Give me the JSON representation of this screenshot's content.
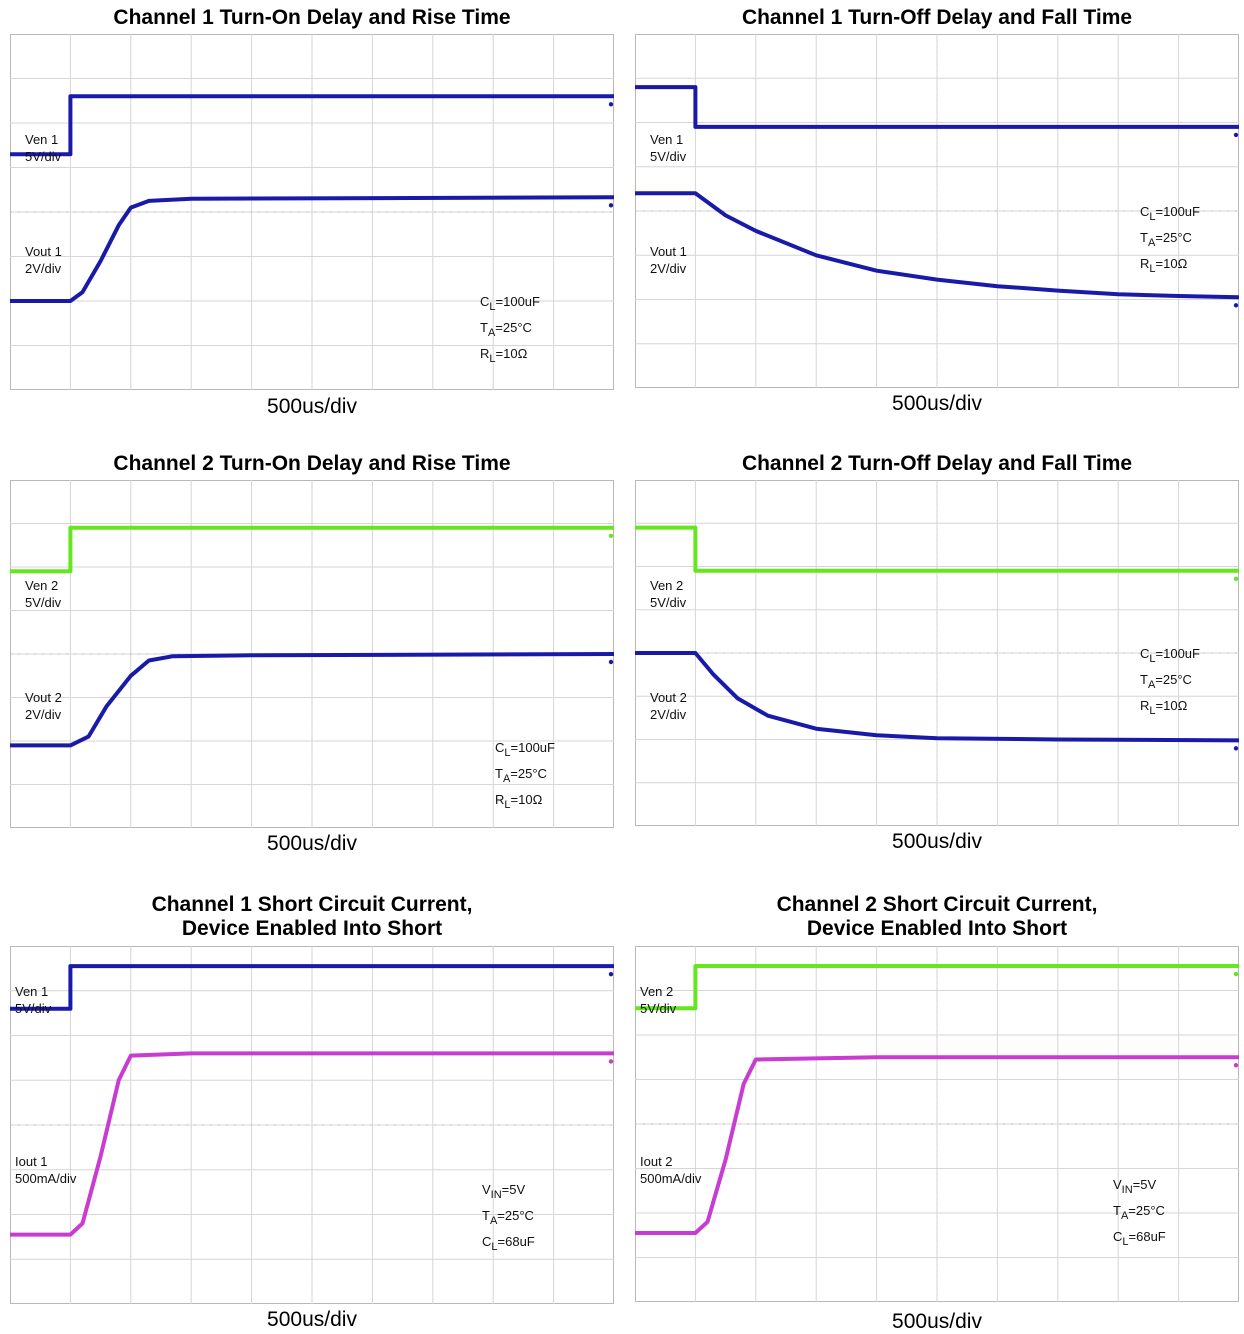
{
  "chart_data": [
    {
      "type": "line",
      "title": "Channel 1 Turn-On Delay and Rise Time",
      "xlabel": "500us/div",
      "grid": true,
      "x_divisions": 10,
      "y_divisions": 8,
      "series": [
        {
          "name": "Ven 1",
          "label": "Ven 1",
          "scale": "5V/div",
          "color": "#1a1aa8",
          "points": [
            [
              0,
              5.3
            ],
            [
              1,
              5.3
            ],
            [
              1,
              6.6
            ],
            [
              10,
              6.6
            ]
          ]
        },
        {
          "name": "Vout 1",
          "label": "Vout 1",
          "scale": "2V/div",
          "color": "#1a1aa8",
          "points": [
            [
              0,
              2.0
            ],
            [
              1.0,
              2.0
            ],
            [
              1.2,
              2.2
            ],
            [
              1.5,
              2.9
            ],
            [
              1.8,
              3.7
            ],
            [
              2.0,
              4.1
            ],
            [
              2.3,
              4.25
            ],
            [
              3.0,
              4.3
            ],
            [
              10,
              4.33
            ]
          ]
        }
      ],
      "annotations": [
        {
          "text": "C",
          "sub": "L",
          "rest": "=100uF"
        },
        {
          "text": "T",
          "sub": "A",
          "rest": "=25°C"
        },
        {
          "text": "R",
          "sub": "L",
          "rest": "=10Ω"
        }
      ]
    },
    {
      "type": "line",
      "title": "Channel 1 Turn-Off Delay and Fall Time",
      "xlabel": "500us/div",
      "grid": true,
      "x_divisions": 10,
      "y_divisions": 8,
      "series": [
        {
          "name": "Ven 1",
          "label": "Ven 1",
          "scale": "5V/div",
          "color": "#1a1aa8",
          "points": [
            [
              0,
              6.8
            ],
            [
              1,
              6.8
            ],
            [
              1,
              5.9
            ],
            [
              10,
              5.9
            ]
          ]
        },
        {
          "name": "Vout 1",
          "label": "Vout 1",
          "scale": "2V/div",
          "color": "#1a1aa8",
          "points": [
            [
              0,
              4.4
            ],
            [
              1.0,
              4.4
            ],
            [
              1.5,
              3.9
            ],
            [
              2.0,
              3.55
            ],
            [
              3.0,
              3.0
            ],
            [
              4.0,
              2.65
            ],
            [
              5.0,
              2.45
            ],
            [
              6.0,
              2.3
            ],
            [
              7.0,
              2.2
            ],
            [
              8.0,
              2.12
            ],
            [
              9.0,
              2.08
            ],
            [
              10,
              2.05
            ]
          ]
        }
      ],
      "annotations": [
        {
          "text": "C",
          "sub": "L",
          "rest": "=100uF"
        },
        {
          "text": "T",
          "sub": "A",
          "rest": "=25°C"
        },
        {
          "text": "R",
          "sub": "L",
          "rest": "=10Ω"
        }
      ]
    },
    {
      "type": "line",
      "title": "Channel 2 Turn-On Delay and Rise Time",
      "xlabel": "500us/div",
      "grid": true,
      "x_divisions": 10,
      "y_divisions": 8,
      "series": [
        {
          "name": "Ven 2",
          "label": "Ven 2",
          "scale": "5V/div",
          "color": "#66e61e",
          "points": [
            [
              0,
              5.9
            ],
            [
              1,
              5.9
            ],
            [
              1,
              6.9
            ],
            [
              10,
              6.9
            ]
          ]
        },
        {
          "name": "Vout 2",
          "label": "Vout 2",
          "scale": "2V/div",
          "color": "#1a1aa8",
          "points": [
            [
              0,
              1.9
            ],
            [
              1.0,
              1.9
            ],
            [
              1.3,
              2.1
            ],
            [
              1.6,
              2.8
            ],
            [
              2.0,
              3.5
            ],
            [
              2.3,
              3.85
            ],
            [
              2.7,
              3.95
            ],
            [
              4.0,
              3.97
            ],
            [
              10,
              4.0
            ]
          ]
        }
      ],
      "annotations": [
        {
          "text": "C",
          "sub": "L",
          "rest": "=100uF"
        },
        {
          "text": "T",
          "sub": "A",
          "rest": "=25°C"
        },
        {
          "text": "R",
          "sub": "L",
          "rest": "=10Ω"
        }
      ]
    },
    {
      "type": "line",
      "title": "Channel 2 Turn-Off Delay and Fall Time",
      "xlabel": "500us/div",
      "grid": true,
      "x_divisions": 10,
      "y_divisions": 8,
      "series": [
        {
          "name": "Ven 2",
          "label": "Ven 2",
          "scale": "5V/div",
          "color": "#66e61e",
          "points": [
            [
              0,
              6.9
            ],
            [
              1,
              6.9
            ],
            [
              1,
              5.9
            ],
            [
              10,
              5.9
            ]
          ]
        },
        {
          "name": "Vout 2",
          "label": "Vout 2",
          "scale": "2V/div",
          "color": "#1a1aa8",
          "points": [
            [
              0,
              4.0
            ],
            [
              1.0,
              4.0
            ],
            [
              1.3,
              3.5
            ],
            [
              1.7,
              2.95
            ],
            [
              2.2,
              2.55
            ],
            [
              3.0,
              2.25
            ],
            [
              4.0,
              2.1
            ],
            [
              5.0,
              2.03
            ],
            [
              7.0,
              2.0
            ],
            [
              10,
              1.98
            ]
          ]
        }
      ],
      "annotations": [
        {
          "text": "C",
          "sub": "L",
          "rest": "=100uF"
        },
        {
          "text": "T",
          "sub": "A",
          "rest": "=25°C"
        },
        {
          "text": "R",
          "sub": "L",
          "rest": "=10Ω"
        }
      ]
    },
    {
      "type": "line",
      "title": "Channel 1 Short Circuit Current,\nDevice Enabled Into Short",
      "xlabel": "500us/div",
      "grid": true,
      "x_divisions": 10,
      "y_divisions": 8,
      "series": [
        {
          "name": "Ven 1",
          "label": "Ven 1",
          "scale": "5V/div",
          "color": "#1a1aa8",
          "points": [
            [
              0,
              6.6
            ],
            [
              1,
              6.6
            ],
            [
              1,
              7.55
            ],
            [
              10,
              7.55
            ]
          ]
        },
        {
          "name": "Iout 1",
          "label": "Iout 1",
          "scale": "500mA/div",
          "color": "#c83cd2",
          "points": [
            [
              0,
              1.55
            ],
            [
              1.0,
              1.55
            ],
            [
              1.2,
              1.8
            ],
            [
              1.5,
              3.3
            ],
            [
              1.8,
              5.0
            ],
            [
              2.0,
              5.55
            ],
            [
              3.0,
              5.6
            ],
            [
              10,
              5.6
            ]
          ]
        }
      ],
      "annotations": [
        {
          "text": "V",
          "sub": "IN",
          "rest": "=5V"
        },
        {
          "text": "T",
          "sub": "A",
          "rest": "=25°C"
        },
        {
          "text": "C",
          "sub": "L",
          "rest": "=68uF"
        }
      ]
    },
    {
      "type": "line",
      "title": "Channel 2 Short Circuit Current,\nDevice Enabled Into Short",
      "xlabel": "500us/div",
      "grid": true,
      "x_divisions": 10,
      "y_divisions": 8,
      "series": [
        {
          "name": "Ven 2",
          "label": "Ven 2",
          "scale": "5V/div",
          "color": "#66e61e",
          "points": [
            [
              0,
              6.6
            ],
            [
              1,
              6.6
            ],
            [
              1,
              7.55
            ],
            [
              10,
              7.55
            ]
          ]
        },
        {
          "name": "Iout 2",
          "label": "Iout 2",
          "scale": "500mA/div",
          "color": "#c83cd2",
          "points": [
            [
              0,
              1.55
            ],
            [
              1.0,
              1.55
            ],
            [
              1.2,
              1.8
            ],
            [
              1.5,
              3.2
            ],
            [
              1.8,
              4.9
            ],
            [
              2.0,
              5.45
            ],
            [
              4.0,
              5.5
            ],
            [
              10,
              5.5
            ]
          ]
        }
      ],
      "annotations": [
        {
          "text": "V",
          "sub": "IN",
          "rest": "=5V"
        },
        {
          "text": "T",
          "sub": "A",
          "rest": "=25°C"
        },
        {
          "text": "C",
          "sub": "L",
          "rest": "=68uF"
        }
      ]
    }
  ]
}
